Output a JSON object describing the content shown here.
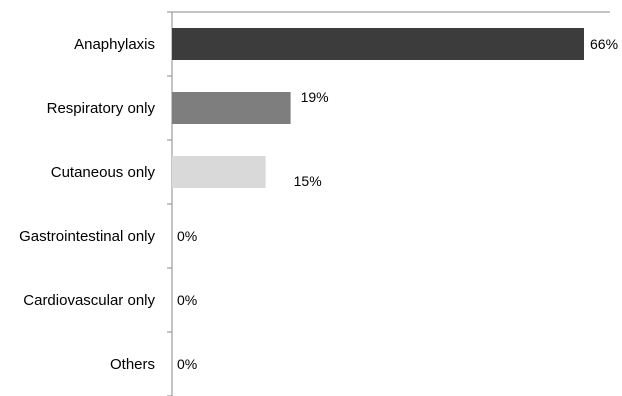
{
  "chart_data": {
    "type": "bar",
    "orientation": "horizontal",
    "categories": [
      "Anaphylaxis",
      "Respiratory only",
      "Cutaneous only",
      "Gastrointestinal only",
      "Cardiovascular only",
      "Others"
    ],
    "values": [
      66,
      19,
      15,
      0,
      0,
      0
    ],
    "value_labels": [
      "66%",
      "19%",
      "15%",
      "0%",
      "0%",
      "0%"
    ],
    "bar_colors": [
      "#3c3c3c",
      "#7e7e7e",
      "#d9d9d9",
      "#d9d9d9",
      "#d9d9d9",
      "#d9d9d9"
    ],
    "axis_color": "#8a8a8a",
    "xlim": [
      0,
      68
    ],
    "grid": false,
    "legend": "none",
    "title": "",
    "xlabel": "",
    "ylabel": ""
  }
}
